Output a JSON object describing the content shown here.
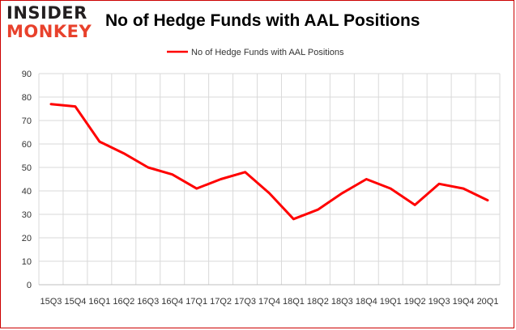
{
  "logo": {
    "line1": "INSIDER",
    "line2": "MONKEY"
  },
  "chart_data": {
    "type": "line",
    "title": "No of Hedge Funds with AAL Positions",
    "xlabel": "",
    "ylabel": "",
    "categories": [
      "15Q3",
      "15Q4",
      "16Q1",
      "16Q2",
      "16Q3",
      "16Q4",
      "17Q1",
      "17Q2",
      "17Q3",
      "17Q4",
      "18Q1",
      "18Q2",
      "18Q3",
      "18Q4",
      "19Q1",
      "19Q2",
      "19Q3",
      "19Q4",
      "20Q1"
    ],
    "series": [
      {
        "name": "No of Hedge Funds with AAL Positions",
        "values": [
          77,
          76,
          61,
          56,
          50,
          47,
          41,
          45,
          48,
          39,
          28,
          32,
          39,
          45,
          41,
          34,
          43,
          41,
          36
        ],
        "color": "#ff0000"
      }
    ],
    "ylim": [
      0,
      90
    ],
    "yticks": [
      0,
      10,
      20,
      30,
      40,
      50,
      60,
      70,
      80,
      90
    ],
    "grid": true,
    "legend": "top-center"
  },
  "colors": {
    "line": "#ff0000",
    "grid": "#d9d9d9",
    "frame": "#cc0000",
    "logo_dark": "#231f20",
    "logo_red": "#e8412c"
  }
}
